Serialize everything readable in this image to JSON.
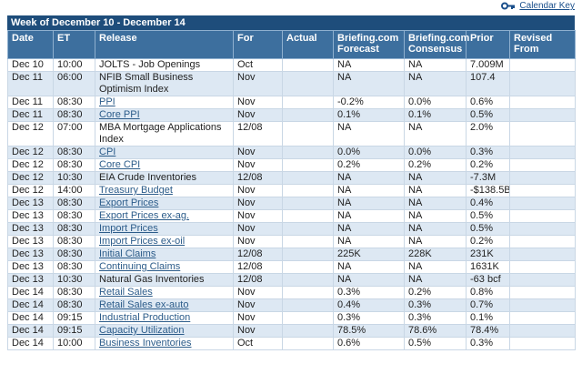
{
  "calendar_key": "Calendar Key",
  "week_title": "Week of December 10 - December 14",
  "columns": [
    [
      "Date"
    ],
    [
      "ET"
    ],
    [
      "Release"
    ],
    [
      "For"
    ],
    [
      "Actual"
    ],
    [
      "Briefing.com",
      "Forecast"
    ],
    [
      "Briefing.com",
      "Consensus"
    ],
    [
      "Prior"
    ],
    [
      "Revised",
      "From"
    ]
  ],
  "rows": [
    {
      "date": "Dec 10",
      "time": "10:00",
      "release": "JOLTS - Job Openings",
      "period": "Oct",
      "forecast": "NA",
      "consensus": "NA",
      "prior": "7.009M",
      "link": false
    },
    {
      "date": "Dec 11",
      "time": "06:00",
      "release": "NFIB Small Business Optimism Index",
      "period": "Nov",
      "forecast": "NA",
      "consensus": "NA",
      "prior": "107.4",
      "link": false
    },
    {
      "date": "Dec 11",
      "time": "08:30",
      "release": "PPI",
      "period": "Nov",
      "forecast": "-0.2%",
      "consensus": "0.0%",
      "prior": "0.6%",
      "link": true
    },
    {
      "date": "Dec 11",
      "time": "08:30",
      "release": "Core PPI",
      "period": "Nov",
      "forecast": "0.1%",
      "consensus": "0.1%",
      "prior": "0.5%",
      "link": true
    },
    {
      "date": "Dec 12",
      "time": "07:00",
      "release": "MBA Mortgage Applications Index",
      "period": "12/08",
      "forecast": "NA",
      "consensus": "NA",
      "prior": "2.0%",
      "link": false
    },
    {
      "date": "Dec 12",
      "time": "08:30",
      "release": "CPI",
      "period": "Nov",
      "forecast": "0.0%",
      "consensus": "0.0%",
      "prior": "0.3%",
      "link": true
    },
    {
      "date": "Dec 12",
      "time": "08:30",
      "release": "Core CPI",
      "period": "Nov",
      "forecast": "0.2%",
      "consensus": "0.2%",
      "prior": "0.2%",
      "link": true
    },
    {
      "date": "Dec 12",
      "time": "10:30",
      "release": "EIA Crude Inventories",
      "period": "12/08",
      "forecast": "NA",
      "consensus": "NA",
      "prior": "-7.3M",
      "link": false
    },
    {
      "date": "Dec 12",
      "time": "14:00",
      "release": "Treasury Budget",
      "period": "Nov",
      "forecast": "NA",
      "consensus": "NA",
      "prior": "-$138.5B",
      "link": true
    },
    {
      "date": "Dec 13",
      "time": "08:30",
      "release": "Export Prices",
      "period": "Nov",
      "forecast": "NA",
      "consensus": "NA",
      "prior": "0.4%",
      "link": true
    },
    {
      "date": "Dec 13",
      "time": "08:30",
      "release": "Export Prices ex-ag.",
      "period": "Nov",
      "forecast": "NA",
      "consensus": "NA",
      "prior": "0.5%",
      "link": true
    },
    {
      "date": "Dec 13",
      "time": "08:30",
      "release": "Import Prices",
      "period": "Nov",
      "forecast": "NA",
      "consensus": "NA",
      "prior": "0.5%",
      "link": true
    },
    {
      "date": "Dec 13",
      "time": "08:30",
      "release": "Import Prices ex-oil",
      "period": "Nov",
      "forecast": "NA",
      "consensus": "NA",
      "prior": "0.2%",
      "link": true
    },
    {
      "date": "Dec 13",
      "time": "08:30",
      "release": "Initial Claims",
      "period": "12/08",
      "forecast": "225K",
      "consensus": "228K",
      "prior": "231K",
      "link": true
    },
    {
      "date": "Dec 13",
      "time": "08:30",
      "release": "Continuing Claims",
      "period": "12/08",
      "forecast": "NA",
      "consensus": "NA",
      "prior": "1631K",
      "link": true
    },
    {
      "date": "Dec 13",
      "time": "10:30",
      "release": "Natural Gas Inventories",
      "period": "12/08",
      "forecast": "NA",
      "consensus": "NA",
      "prior": "-63 bcf",
      "link": false
    },
    {
      "date": "Dec 14",
      "time": "08:30",
      "release": "Retail Sales",
      "period": "Nov",
      "forecast": "0.3%",
      "consensus": "0.2%",
      "prior": "0.8%",
      "link": true
    },
    {
      "date": "Dec 14",
      "time": "08:30",
      "release": "Retail Sales ex-auto",
      "period": "Nov",
      "forecast": "0.4%",
      "consensus": "0.3%",
      "prior": "0.7%",
      "link": true
    },
    {
      "date": "Dec 14",
      "time": "09:15",
      "release": "Industrial Production",
      "period": "Nov",
      "forecast": "0.3%",
      "consensus": "0.3%",
      "prior": "0.1%",
      "link": true
    },
    {
      "date": "Dec 14",
      "time": "09:15",
      "release": "Capacity Utilization",
      "period": "Nov",
      "forecast": "78.5%",
      "consensus": "78.6%",
      "prior": "78.4%",
      "link": true
    },
    {
      "date": "Dec 14",
      "time": "10:00",
      "release": "Business Inventories",
      "period": "Oct",
      "forecast": "0.6%",
      "consensus": "0.5%",
      "prior": "0.3%",
      "link": true
    }
  ]
}
